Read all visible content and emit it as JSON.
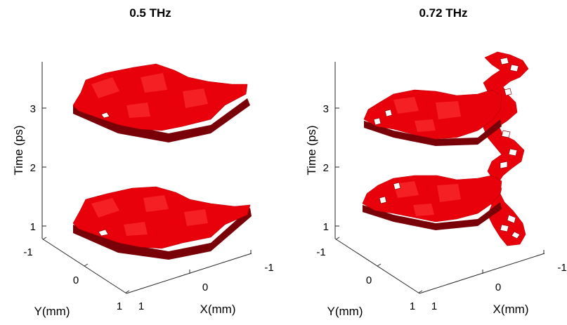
{
  "chart_data": [
    {
      "type": "isosurface-3d",
      "title": "0.5 THz",
      "zlabel": "Time (ps)",
      "xlabel": "X(mm)",
      "ylabel": "Y(mm)",
      "zticks": [
        "1",
        "2",
        "3"
      ],
      "xticks": [
        "1",
        "0",
        "-1"
      ],
      "yticks": [
        "-1",
        "0",
        "1"
      ],
      "color": "#e8000a",
      "series": [
        {
          "blob_time_ps": 1.2
        },
        {
          "blob_time_ps": 3.0
        }
      ]
    },
    {
      "type": "isosurface-3d",
      "title": "0.72 THz",
      "zlabel": "Time (ps)",
      "xlabel": "X(mm)",
      "ylabel": "Y(mm)",
      "zticks": [
        "1",
        "2",
        "3"
      ],
      "xticks": [
        "1",
        "0",
        "-1"
      ],
      "yticks": [
        "-1",
        "0",
        "1"
      ],
      "color": "#e8000a",
      "series": [
        {
          "blob_time_ps": 1.2
        },
        {
          "blob_time_ps": 3.0
        },
        {
          "helix_from_ps": 0.9,
          "helix_to_ps": 3.8
        }
      ]
    }
  ]
}
